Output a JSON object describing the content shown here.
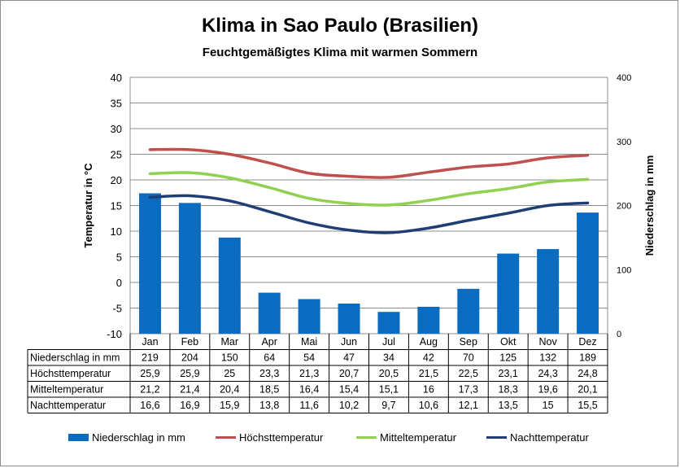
{
  "colors": {
    "precip": "#0a6cc0",
    "max": "#c0504d",
    "mean": "#92d050",
    "night": "#1f3e73",
    "grid": "#8c8c8c"
  },
  "chart_data": {
    "type": "bar",
    "title": "Klima in Sao Paulo (Brasilien)",
    "subtitle": "Feuchtgemäßigtes Klima mit warmen Sommern",
    "ylabel": "Temperatur in °C",
    "y2label": "Niederschlag in mm",
    "ylim": [
      -10,
      40
    ],
    "y2lim": [
      0,
      400
    ],
    "yticks": [
      "40",
      "35",
      "30",
      "25",
      "20",
      "15",
      "10",
      "5",
      "0",
      "-5",
      "-10"
    ],
    "y2ticks": [
      "400",
      "300",
      "200",
      "100",
      "0"
    ],
    "grid": true,
    "legend_position": "bottom",
    "categories": [
      "Jan",
      "Feb",
      "Mar",
      "Apr",
      "Mai",
      "Jun",
      "Jul",
      "Aug",
      "Sep",
      "Okt",
      "Nov",
      "Dez"
    ],
    "series": [
      {
        "name": "Niederschlag in mm",
        "type": "bar",
        "axis": "right",
        "values": [
          219,
          204,
          150,
          64,
          54,
          47,
          34,
          42,
          70,
          125,
          132,
          189
        ],
        "labels": [
          "219",
          "204",
          "150",
          "64",
          "54",
          "47",
          "34",
          "42",
          "70",
          "125",
          "132",
          "189"
        ]
      },
      {
        "name": "Höchsttemperatur",
        "type": "line",
        "axis": "left",
        "values": [
          25.9,
          25.9,
          25,
          23.3,
          21.3,
          20.7,
          20.5,
          21.5,
          22.5,
          23.1,
          24.3,
          24.8
        ],
        "labels": [
          "25,9",
          "25,9",
          "25",
          "23,3",
          "21,3",
          "20,7",
          "20,5",
          "21,5",
          "22,5",
          "23,1",
          "24,3",
          "24,8"
        ]
      },
      {
        "name": "Mitteltemperatur",
        "type": "line",
        "axis": "left",
        "values": [
          21.2,
          21.4,
          20.4,
          18.5,
          16.4,
          15.4,
          15.1,
          16,
          17.3,
          18.3,
          19.6,
          20.1
        ],
        "labels": [
          "21,2",
          "21,4",
          "20,4",
          "18,5",
          "16,4",
          "15,4",
          "15,1",
          "16",
          "17,3",
          "18,3",
          "19,6",
          "20,1"
        ]
      },
      {
        "name": "Nachttemperatur",
        "type": "line",
        "axis": "left",
        "values": [
          16.6,
          16.9,
          15.9,
          13.8,
          11.6,
          10.2,
          9.7,
          10.6,
          12.1,
          13.5,
          15,
          15.5
        ],
        "labels": [
          "16,6",
          "16,9",
          "15,9",
          "13,8",
          "11,6",
          "10,2",
          "9,7",
          "10,6",
          "12,1",
          "13,5",
          "15",
          "15,5"
        ]
      }
    ]
  }
}
